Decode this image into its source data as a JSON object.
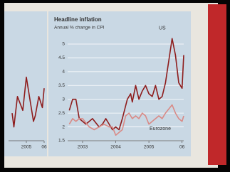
{
  "chart_data": [
    {
      "type": "line",
      "title": "Headline inflation",
      "subtitle": "Annual % change in CPI",
      "xlim": [
        2002.55,
        2006.05
      ],
      "xticks": [
        2003,
        2004,
        2005,
        {
          "value": 2006,
          "label": "06"
        }
      ],
      "ylim": [
        1.5,
        5.0
      ],
      "yticks": [
        1.5,
        2.0,
        2.5,
        3.0,
        3.5,
        4.0,
        4.5,
        5.0
      ],
      "grid": true,
      "series": [
        {
          "name": "US",
          "color": "#8e1c1c",
          "x": [
            2002.6,
            2002.7,
            2002.8,
            2002.9,
            2003.0,
            2003.1,
            2003.3,
            2003.5,
            2003.6,
            2003.7,
            2003.9,
            2004.0,
            2004.1,
            2004.2,
            2004.35,
            2004.45,
            2004.5,
            2004.6,
            2004.7,
            2004.8,
            2004.9,
            2005.0,
            2005.1,
            2005.2,
            2005.3,
            2005.4,
            2005.5,
            2005.7,
            2005.8,
            2005.9,
            2006.0,
            2006.05
          ],
          "values": [
            2.6,
            3.0,
            3.0,
            2.3,
            2.2,
            2.1,
            2.3,
            2.0,
            2.1,
            2.3,
            1.9,
            2.0,
            1.9,
            2.3,
            3.0,
            3.2,
            2.9,
            3.5,
            3.0,
            3.3,
            3.5,
            3.2,
            3.1,
            3.5,
            3.0,
            3.1,
            3.6,
            5.2,
            4.6,
            3.6,
            3.4,
            4.6
          ]
        },
        {
          "name": "Eurozone",
          "color": "#d98a86",
          "x": [
            2002.6,
            2002.7,
            2002.8,
            2002.9,
            2003.0,
            2003.2,
            2003.35,
            2003.5,
            2003.65,
            2003.8,
            2003.9,
            2004.0,
            2004.2,
            2004.3,
            2004.4,
            2004.5,
            2004.6,
            2004.7,
            2004.8,
            2004.9,
            2005.0,
            2005.1,
            2005.3,
            2005.4,
            2005.5,
            2005.7,
            2005.8,
            2005.9,
            2006.0,
            2006.05
          ],
          "values": [
            2.1,
            2.3,
            2.2,
            2.3,
            2.3,
            2.0,
            1.9,
            2.0,
            2.1,
            2.0,
            2.0,
            1.7,
            1.9,
            2.4,
            2.5,
            2.3,
            2.4,
            2.3,
            2.5,
            2.4,
            2.1,
            2.2,
            2.4,
            2.3,
            2.5,
            2.8,
            2.5,
            2.3,
            2.2,
            2.4
          ]
        }
      ]
    },
    {
      "type": "line",
      "xlim": [
        2004.0,
        2006.0
      ],
      "xticks": [
        2005,
        {
          "value": 2006,
          "label": "06"
        }
      ],
      "ylim": [
        1.5,
        5.0
      ],
      "grid": true,
      "series": [
        {
          "color": "#8e1c1c",
          "x": [
            2004.2,
            2004.3,
            2004.5,
            2004.8,
            2005.0,
            2005.2,
            2005.4,
            2005.5,
            2005.7,
            2005.9,
            2006.0
          ],
          "values": [
            2.5,
            2.0,
            3.1,
            2.6,
            3.8,
            3.0,
            2.2,
            2.4,
            3.1,
            2.7,
            3.4
          ]
        }
      ]
    }
  ]
}
